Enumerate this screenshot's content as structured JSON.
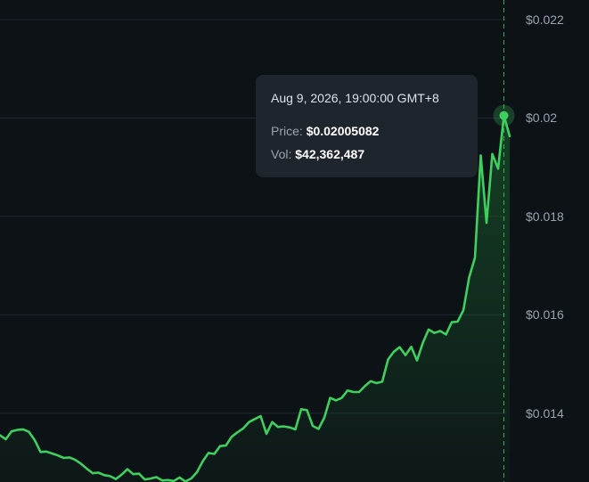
{
  "chart_data": {
    "type": "area",
    "y_ticks": [
      {
        "value": 0.022,
        "label": "$0.022"
      },
      {
        "value": 0.02,
        "label": "$0.02"
      },
      {
        "value": 0.018,
        "label": "$0.018"
      },
      {
        "value": 0.016,
        "label": "$0.016"
      },
      {
        "value": 0.014,
        "label": "$0.014"
      }
    ],
    "ylim": [
      0.0126,
      0.0224
    ],
    "grid": true,
    "line_color": "#3fcf5f",
    "fill_color": "#1f7a35",
    "values": [
      0.01355,
      0.01347,
      0.01363,
      0.01366,
      0.01367,
      0.01362,
      0.01345,
      0.01321,
      0.01322,
      0.01318,
      0.01314,
      0.01309,
      0.0131,
      0.01305,
      0.01297,
      0.01287,
      0.01278,
      0.01279,
      0.01274,
      0.01272,
      0.01266,
      0.01275,
      0.01286,
      0.01276,
      0.01277,
      0.01265,
      0.01267,
      0.0127,
      0.01263,
      0.01264,
      0.01262,
      0.01269,
      0.01261,
      0.01267,
      0.0128,
      0.01302,
      0.01319,
      0.01317,
      0.01333,
      0.01334,
      0.01352,
      0.01361,
      0.01369,
      0.01382,
      0.01388,
      0.01394,
      0.01358,
      0.01382,
      0.01372,
      0.01373,
      0.01371,
      0.01367,
      0.01408,
      0.01406,
      0.01374,
      0.01368,
      0.01391,
      0.01431,
      0.01426,
      0.01431,
      0.01446,
      0.01443,
      0.01443,
      0.01455,
      0.01465,
      0.01461,
      0.01464,
      0.01509,
      0.01525,
      0.01534,
      0.01518,
      0.01535,
      0.01507,
      0.01543,
      0.0157,
      0.01563,
      0.01567,
      0.0156,
      0.01585,
      0.01586,
      0.01609,
      0.01676,
      0.01716,
      0.01924,
      0.01787,
      0.01927,
      0.01897,
      0.02005,
      0.01963
    ],
    "highlight_index": 87
  },
  "tooltip": {
    "time": "Aug 9, 2026, 19:00:00 GMT+8",
    "price_label": "Price:",
    "price_value": "$0.02005082",
    "vol_label": "Vol:",
    "vol_value": "$42,362,487"
  }
}
